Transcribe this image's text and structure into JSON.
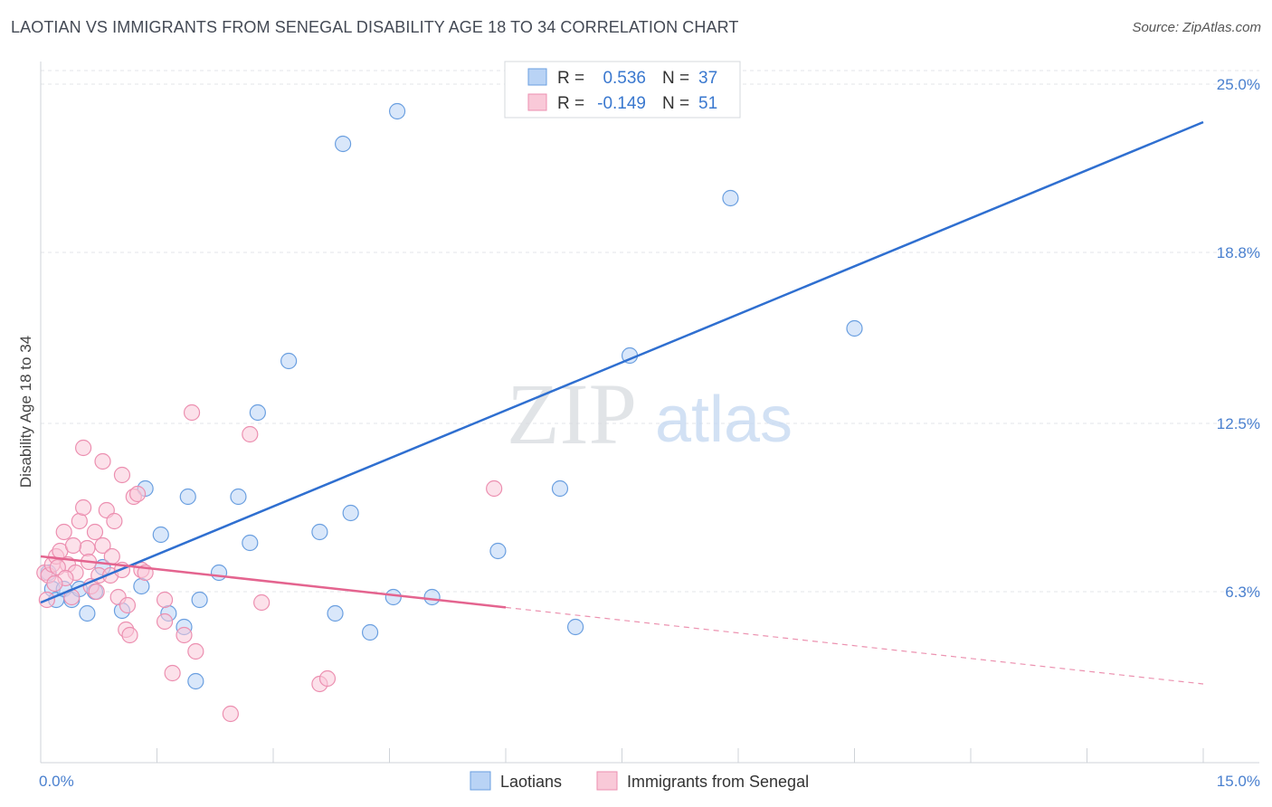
{
  "title": "LAOTIAN VS IMMIGRANTS FROM SENEGAL DISABILITY AGE 18 TO 34 CORRELATION CHART",
  "source": "Source: ZipAtlas.com",
  "watermark": {
    "zip": "ZIP",
    "atlas": "atlas"
  },
  "chart_data": {
    "type": "scatter",
    "ylabel": "Disability Age 18 to 34",
    "xlim": [
      0,
      15
    ],
    "ylim": [
      0,
      25.6
    ],
    "x_tick_labels": [
      "0.0%",
      "15.0%"
    ],
    "y_ticks": [
      6.3,
      12.5,
      18.8,
      25.0
    ],
    "y_tick_labels": [
      "6.3%",
      "12.5%",
      "18.8%",
      "25.0%"
    ],
    "grid": true,
    "legend_position": "top-center",
    "stats": [
      {
        "r_label": "R =",
        "r": "0.536",
        "n_label": "N =",
        "n": "37"
      },
      {
        "r_label": "R =",
        "r": "-0.149",
        "n_label": "N =",
        "n": "51"
      }
    ],
    "series": [
      {
        "name": "Laotians",
        "color": "#6a9fe0",
        "fill": "#b9d3f5",
        "line_color": "#2f6fd0",
        "trend": {
          "x0": 0.0,
          "y0": 5.9,
          "x1": 15.0,
          "y1": 23.6,
          "dash_from": null
        },
        "points": [
          [
            0.1,
            7.0
          ],
          [
            0.15,
            6.4
          ],
          [
            0.2,
            6.0
          ],
          [
            0.3,
            6.4
          ],
          [
            0.4,
            6.0
          ],
          [
            0.5,
            6.4
          ],
          [
            0.6,
            5.5
          ],
          [
            0.7,
            6.3
          ],
          [
            0.8,
            7.2
          ],
          [
            1.05,
            5.6
          ],
          [
            1.3,
            6.5
          ],
          [
            1.35,
            10.1
          ],
          [
            1.55,
            8.4
          ],
          [
            1.9,
            9.8
          ],
          [
            1.65,
            5.5
          ],
          [
            1.85,
            5.0
          ],
          [
            2.05,
            6.0
          ],
          [
            2.3,
            7.0
          ],
          [
            2.55,
            9.8
          ],
          [
            2.7,
            8.1
          ],
          [
            2.8,
            12.9
          ],
          [
            3.2,
            14.8
          ],
          [
            3.8,
            5.5
          ],
          [
            3.6,
            8.5
          ],
          [
            3.9,
            22.8
          ],
          [
            4.0,
            9.2
          ],
          [
            4.25,
            4.8
          ],
          [
            4.55,
            6.1
          ],
          [
            4.6,
            24.0
          ],
          [
            5.05,
            6.1
          ],
          [
            5.9,
            7.8
          ],
          [
            6.7,
            10.1
          ],
          [
            6.9,
            5.0
          ],
          [
            7.6,
            15.0
          ],
          [
            8.9,
            20.8
          ],
          [
            10.5,
            16.0
          ],
          [
            2.0,
            3.0
          ]
        ]
      },
      {
        "name": "Immigrants from Senegal",
        "color": "#ec8fb0",
        "fill": "#f9c9d8",
        "line_color": "#e4648f",
        "trend": {
          "x0": 0.0,
          "y0": 7.6,
          "x1": 15.0,
          "y1": 2.9,
          "dash_from": 6.0
        },
        "points": [
          [
            0.05,
            7.0
          ],
          [
            0.1,
            6.9
          ],
          [
            0.15,
            7.3
          ],
          [
            0.2,
            7.6
          ],
          [
            0.25,
            7.8
          ],
          [
            0.3,
            8.5
          ],
          [
            0.35,
            7.3
          ],
          [
            0.4,
            6.1
          ],
          [
            0.45,
            7.0
          ],
          [
            0.5,
            8.9
          ],
          [
            0.55,
            9.4
          ],
          [
            0.55,
            11.6
          ],
          [
            0.6,
            7.9
          ],
          [
            0.65,
            6.5
          ],
          [
            0.7,
            8.5
          ],
          [
            0.75,
            6.9
          ],
          [
            0.8,
            8.0
          ],
          [
            0.8,
            11.1
          ],
          [
            0.85,
            9.3
          ],
          [
            0.9,
            6.9
          ],
          [
            0.95,
            8.9
          ],
          [
            1.0,
            6.1
          ],
          [
            1.05,
            10.6
          ],
          [
            1.05,
            7.1
          ],
          [
            1.1,
            4.9
          ],
          [
            1.15,
            4.7
          ],
          [
            1.2,
            9.8
          ],
          [
            1.25,
            9.9
          ],
          [
            1.3,
            7.1
          ],
          [
            1.35,
            7.0
          ],
          [
            1.6,
            5.2
          ],
          [
            1.6,
            6.0
          ],
          [
            1.7,
            3.3
          ],
          [
            1.85,
            4.7
          ],
          [
            1.95,
            12.9
          ],
          [
            2.0,
            4.1
          ],
          [
            2.45,
            1.8
          ],
          [
            2.7,
            12.1
          ],
          [
            2.85,
            5.9
          ],
          [
            3.6,
            2.9
          ],
          [
            3.7,
            3.1
          ],
          [
            5.85,
            10.1
          ],
          [
            0.08,
            6.0
          ],
          [
            0.22,
            7.2
          ],
          [
            0.32,
            6.8
          ],
          [
            0.42,
            8.0
          ],
          [
            0.62,
            7.4
          ],
          [
            0.72,
            6.3
          ],
          [
            0.92,
            7.6
          ],
          [
            1.12,
            5.8
          ],
          [
            0.18,
            6.6
          ]
        ]
      }
    ]
  }
}
